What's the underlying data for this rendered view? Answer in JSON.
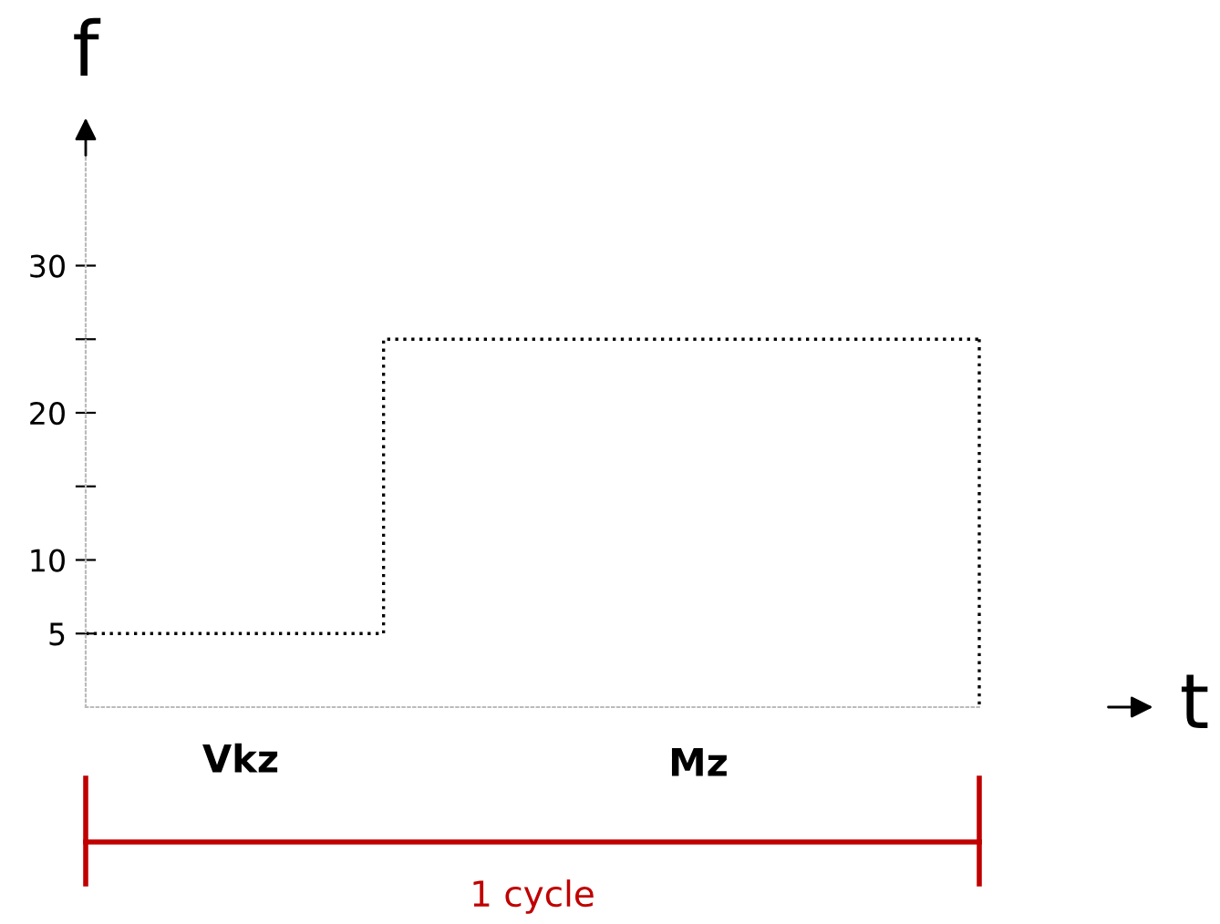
{
  "chart_data": {
    "type": "step",
    "xlabel": "t",
    "ylabel": "f",
    "categories": [
      null,
      null,
      null,
      null,
      null,
      null,
      null
    ],
    "series": [
      {
        "color": "#000000",
        "values": [
          5,
          5,
          25,
          25,
          25,
          25,
          25
        ]
      }
    ],
    "ylim": [
      0,
      40
    ],
    "yticks": [
      5,
      10,
      {
        "value": 15,
        "label": null
      },
      20,
      {
        "value": 25,
        "label": null
      },
      30
    ],
    "line_style": "dotted",
    "marker": "none",
    "grid": false,
    "legend": false,
    "annotations": [
      "Vkz",
      "Mz",
      "1 cycle"
    ]
  }
}
